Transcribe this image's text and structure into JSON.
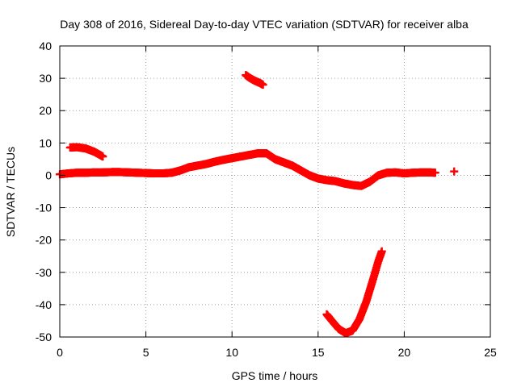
{
  "chart_data": {
    "type": "scatter",
    "title": "Day 308 of 2016, Sidereal Day-to-day VTEC variation (SDTVAR) for receiver alba",
    "xlabel": "GPS time / hours",
    "ylabel": "SDTVAR / TECUs",
    "xlim": [
      0,
      25
    ],
    "ylim": [
      -50,
      40
    ],
    "xticks": [
      0,
      5,
      10,
      15,
      20,
      25
    ],
    "yticks": [
      -50,
      -40,
      -30,
      -20,
      -10,
      0,
      10,
      20,
      30,
      40
    ],
    "grid": true,
    "marker": "cross",
    "color": "#ff0000",
    "series": [
      {
        "name": "main-track",
        "points": [
          [
            0.0,
            0.3
          ],
          [
            0.5,
            0.6
          ],
          [
            1.0,
            0.8
          ],
          [
            1.5,
            0.8
          ],
          [
            2.0,
            0.9
          ],
          [
            2.5,
            0.9
          ],
          [
            3.0,
            1.0
          ],
          [
            3.5,
            1.0
          ],
          [
            4.0,
            0.9
          ],
          [
            4.5,
            0.8
          ],
          [
            5.0,
            0.7
          ],
          [
            5.5,
            0.6
          ],
          [
            6.0,
            0.6
          ],
          [
            6.5,
            0.8
          ],
          [
            7.0,
            1.5
          ],
          [
            7.5,
            2.5
          ],
          [
            8.0,
            3.0
          ],
          [
            8.5,
            3.5
          ],
          [
            9.0,
            4.2
          ],
          [
            9.5,
            4.8
          ],
          [
            10.0,
            5.3
          ],
          [
            10.5,
            5.8
          ],
          [
            11.0,
            6.3
          ],
          [
            11.5,
            6.8
          ],
          [
            12.0,
            6.8
          ],
          [
            12.5,
            5.0
          ],
          [
            13.0,
            4.0
          ],
          [
            13.5,
            3.0
          ],
          [
            14.0,
            1.5
          ],
          [
            14.5,
            0.0
          ],
          [
            15.0,
            -1.0
          ],
          [
            15.5,
            -1.5
          ],
          [
            16.0,
            -1.8
          ],
          [
            16.5,
            -2.5
          ],
          [
            17.0,
            -3.0
          ],
          [
            17.5,
            -3.3
          ],
          [
            18.0,
            -2.0
          ],
          [
            18.5,
            0.0
          ],
          [
            19.0,
            0.8
          ],
          [
            19.5,
            0.9
          ],
          [
            20.0,
            0.6
          ],
          [
            20.5,
            0.8
          ],
          [
            21.0,
            0.9
          ],
          [
            21.5,
            0.9
          ],
          [
            21.8,
            0.8
          ]
        ]
      },
      {
        "name": "arc-early",
        "points": [
          [
            0.6,
            8.6
          ],
          [
            1.0,
            8.7
          ],
          [
            1.5,
            8.3
          ],
          [
            2.0,
            7.3
          ],
          [
            2.5,
            5.8
          ]
        ]
      },
      {
        "name": "arc-high",
        "points": [
          [
            10.8,
            31.0
          ],
          [
            11.0,
            30.2
          ],
          [
            11.3,
            29.3
          ],
          [
            11.6,
            28.6
          ],
          [
            11.8,
            28.0
          ]
        ]
      },
      {
        "name": "arc-low",
        "points": [
          [
            15.5,
            -43.0
          ],
          [
            15.8,
            -45.0
          ],
          [
            16.2,
            -47.5
          ],
          [
            16.6,
            -48.8
          ],
          [
            17.0,
            -48.0
          ],
          [
            17.4,
            -44.5
          ],
          [
            17.8,
            -39.0
          ],
          [
            18.2,
            -32.0
          ],
          [
            18.5,
            -26.5
          ],
          [
            18.7,
            -23.5
          ]
        ]
      },
      {
        "name": "isolated",
        "points": [
          [
            22.9,
            1.2
          ]
        ]
      }
    ]
  }
}
